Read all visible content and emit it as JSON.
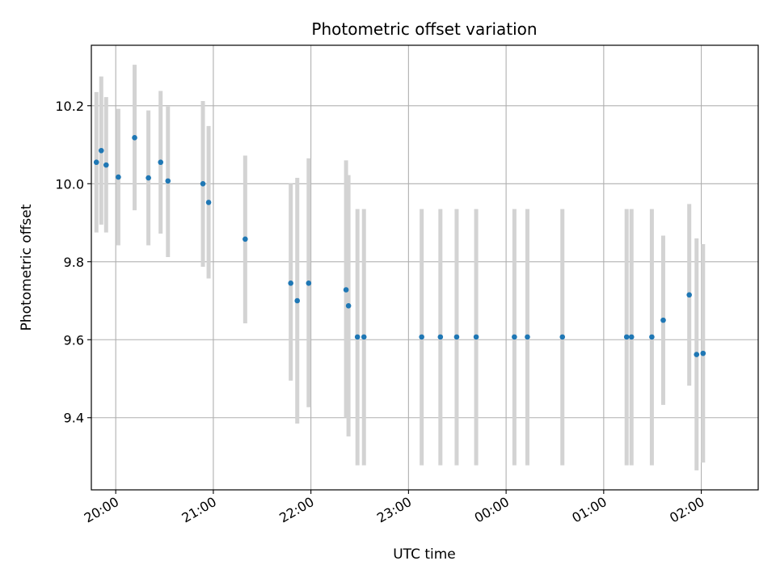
{
  "chart_data": {
    "type": "scatter",
    "title": "Photometric offset variation",
    "xlabel": "UTC time",
    "ylabel": "Photometric offset",
    "x_unit": "minutes after 19:00 UTC",
    "xlim": [
      45,
      455
    ],
    "ylim": [
      9.215,
      10.355
    ],
    "x_ticks": [
      {
        "value": 60,
        "label": "20:00"
      },
      {
        "value": 120,
        "label": "21:00"
      },
      {
        "value": 180,
        "label": "22:00"
      },
      {
        "value": 240,
        "label": "23:00"
      },
      {
        "value": 300,
        "label": "00:00"
      },
      {
        "value": 360,
        "label": "01:00"
      },
      {
        "value": 420,
        "label": "02:00"
      }
    ],
    "y_ticks": [
      {
        "value": 9.4,
        "label": "9.4"
      },
      {
        "value": 9.6,
        "label": "9.6"
      },
      {
        "value": 9.8,
        "label": "9.8"
      },
      {
        "value": 10.0,
        "label": "10.0"
      },
      {
        "value": 10.2,
        "label": "10.2"
      }
    ],
    "grid": true,
    "marker_color": "#1f77b4",
    "errorbar_color": "#d3d3d3",
    "points": [
      {
        "x": 48.1,
        "y": 10.055,
        "lo": 9.875,
        "hi": 10.235
      },
      {
        "x": 51.1,
        "y": 10.085,
        "lo": 9.895,
        "hi": 10.275
      },
      {
        "x": 54.1,
        "y": 10.048,
        "lo": 9.875,
        "hi": 10.222
      },
      {
        "x": 61.6,
        "y": 10.017,
        "lo": 9.842,
        "hi": 10.192
      },
      {
        "x": 71.6,
        "y": 10.118,
        "lo": 9.932,
        "hi": 10.305
      },
      {
        "x": 80.1,
        "y": 10.015,
        "lo": 9.842,
        "hi": 10.188
      },
      {
        "x": 87.6,
        "y": 10.055,
        "lo": 9.872,
        "hi": 10.238
      },
      {
        "x": 92.1,
        "y": 10.007,
        "lo": 9.812,
        "hi": 10.198
      },
      {
        "x": 113.6,
        "y": 10.0,
        "lo": 9.787,
        "hi": 10.212
      },
      {
        "x": 117.1,
        "y": 9.952,
        "lo": 9.757,
        "hi": 10.148
      },
      {
        "x": 139.6,
        "y": 9.858,
        "lo": 9.642,
        "hi": 10.072
      },
      {
        "x": 167.6,
        "y": 9.745,
        "lo": 9.495,
        "hi": 10.0
      },
      {
        "x": 171.6,
        "y": 9.7,
        "lo": 9.385,
        "hi": 10.015
      },
      {
        "x": 178.6,
        "y": 9.745,
        "lo": 9.427,
        "hi": 10.065
      },
      {
        "x": 201.6,
        "y": 9.728,
        "lo": 9.4,
        "hi": 10.06
      },
      {
        "x": 203.1,
        "y": 9.687,
        "lo": 9.352,
        "hi": 10.022
      },
      {
        "x": 208.6,
        "y": 9.607,
        "lo": 9.278,
        "hi": 9.935
      },
      {
        "x": 212.6,
        "y": 9.607,
        "lo": 9.278,
        "hi": 9.935
      },
      {
        "x": 248.1,
        "y": 9.607,
        "lo": 9.278,
        "hi": 9.935
      },
      {
        "x": 259.6,
        "y": 9.607,
        "lo": 9.278,
        "hi": 9.935
      },
      {
        "x": 269.6,
        "y": 9.607,
        "lo": 9.278,
        "hi": 9.935
      },
      {
        "x": 281.6,
        "y": 9.607,
        "lo": 9.278,
        "hi": 9.935
      },
      {
        "x": 305.1,
        "y": 9.607,
        "lo": 9.278,
        "hi": 9.935
      },
      {
        "x": 313.1,
        "y": 9.607,
        "lo": 9.278,
        "hi": 9.935
      },
      {
        "x": 334.6,
        "y": 9.607,
        "lo": 9.278,
        "hi": 9.935
      },
      {
        "x": 374.1,
        "y": 9.607,
        "lo": 9.278,
        "hi": 9.935
      },
      {
        "x": 377.1,
        "y": 9.607,
        "lo": 9.278,
        "hi": 9.935
      },
      {
        "x": 389.6,
        "y": 9.607,
        "lo": 9.278,
        "hi": 9.935
      },
      {
        "x": 396.6,
        "y": 9.65,
        "lo": 9.433,
        "hi": 9.867
      },
      {
        "x": 412.6,
        "y": 9.715,
        "lo": 9.482,
        "hi": 9.948
      },
      {
        "x": 417.1,
        "y": 9.562,
        "lo": 9.265,
        "hi": 9.86
      },
      {
        "x": 421.1,
        "y": 9.565,
        "lo": 9.285,
        "hi": 9.845
      }
    ]
  }
}
